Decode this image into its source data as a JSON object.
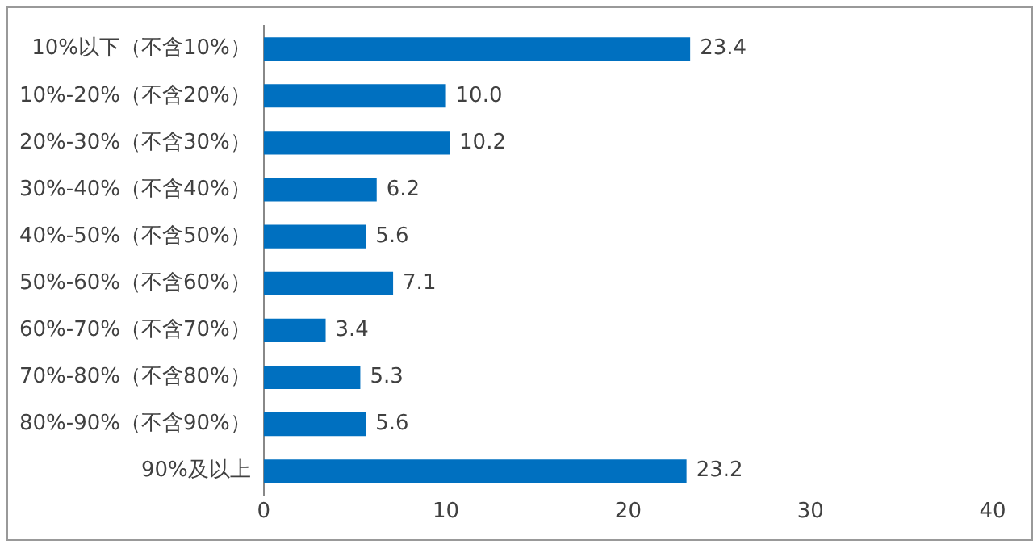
{
  "chart_data": {
    "type": "bar",
    "orientation": "horizontal",
    "categories": [
      "10%以下（不含10%）",
      "10%-20%（不含20%）",
      "20%-30%（不含30%）",
      "30%-40%（不含40%）",
      "40%-50%（不含50%）",
      "50%-60%（不含60%）",
      "60%-70%（不含70%）",
      "70%-80%（不含80%）",
      "80%-90%（不含90%）",
      "90%及以上"
    ],
    "values": [
      23.4,
      10.0,
      10.2,
      6.2,
      5.6,
      7.1,
      3.4,
      5.3,
      5.6,
      23.2
    ],
    "value_labels": [
      "23.4",
      "10.0",
      "10.2",
      "6.2",
      "5.6",
      "7.1",
      "3.4",
      "5.3",
      "5.6",
      "23.2"
    ],
    "color": "#0070c0",
    "xlim": [
      0,
      40
    ],
    "xticks": [
      0,
      10,
      20,
      30,
      40
    ],
    "grid": false,
    "legend": false
  }
}
